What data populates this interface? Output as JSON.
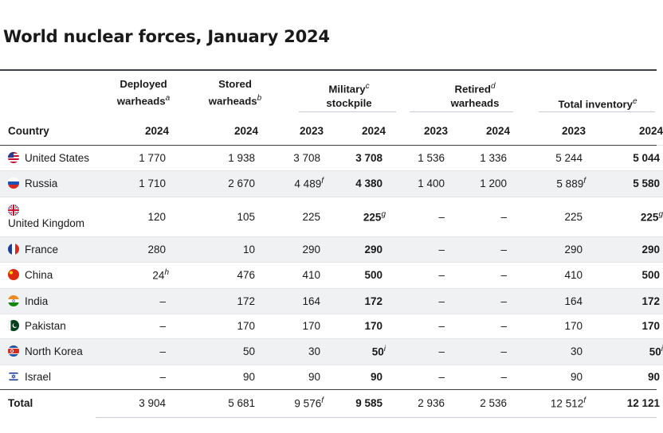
{
  "title": "World nuclear forces, January 2024",
  "headers": {
    "deployed": [
      "Deployed",
      "warheads"
    ],
    "deployed_sup": "a",
    "stored": [
      "Stored",
      "warheads"
    ],
    "stored_sup": "b",
    "military": [
      "Military",
      "stockpile"
    ],
    "military_sup": "c",
    "retired": [
      "Retired",
      "warheads"
    ],
    "retired_sup": "d",
    "total": "Total inventory",
    "total_sup": "e",
    "country": "Country",
    "years": [
      "2024",
      "2024",
      "2023",
      "2024",
      "2023",
      "2024",
      "2023",
      "2024"
    ]
  },
  "rows": [
    {
      "country": "United States",
      "flag": "us-flag-icon",
      "cells": [
        "1 770",
        "1 938",
        "3 708",
        "3 708",
        "1 536",
        "1 336",
        "5 244",
        "5 044"
      ],
      "sups": [
        "",
        "",
        "",
        "",
        "",
        "",
        "",
        ""
      ]
    },
    {
      "country": "Russia",
      "flag": "russia-flag-icon",
      "cells": [
        "1 710",
        "2 670",
        "4 489",
        "4 380",
        "1 400",
        "1 200",
        "5 889",
        "5 580"
      ],
      "sups": [
        "",
        "",
        "f",
        "",
        "",
        "",
        "f",
        ""
      ]
    },
    {
      "country": "United Kingdom",
      "flag": "uk-flag-icon",
      "cells": [
        "120",
        "105",
        "225",
        "225",
        "–",
        "–",
        "225",
        "225"
      ],
      "sups": [
        "",
        "",
        "",
        "g",
        "",
        "",
        "",
        "g"
      ]
    },
    {
      "country": "France",
      "flag": "france-flag-icon",
      "cells": [
        "280",
        "10",
        "290",
        "290",
        "–",
        "–",
        "290",
        "290"
      ],
      "sups": [
        "",
        "",
        "",
        "",
        "",
        "",
        "",
        ""
      ]
    },
    {
      "country": "China",
      "flag": "china-flag-icon",
      "cells": [
        "24",
        "476",
        "410",
        "500",
        "–",
        "–",
        "410",
        "500"
      ],
      "sups": [
        "h",
        "",
        "",
        "",
        "",
        "",
        "",
        ""
      ]
    },
    {
      "country": "India",
      "flag": "india-flag-icon",
      "cells": [
        "–",
        "172",
        "164",
        "172",
        "–",
        "–",
        "164",
        "172"
      ],
      "sups": [
        "",
        "",
        "",
        "",
        "",
        "",
        "",
        ""
      ]
    },
    {
      "country": "Pakistan",
      "flag": "pakistan-flag-icon",
      "cells": [
        "–",
        "170",
        "170",
        "170",
        "–",
        "–",
        "170",
        "170"
      ],
      "sups": [
        "",
        "",
        "",
        "",
        "",
        "",
        "",
        ""
      ]
    },
    {
      "country": "North Korea",
      "flag": "north-korea-flag-icon",
      "cells": [
        "–",
        "50",
        "30",
        "50",
        "–",
        "–",
        "30",
        "50"
      ],
      "sups": [
        "",
        "",
        "",
        "i",
        "",
        "",
        "",
        "i"
      ]
    },
    {
      "country": "Israel",
      "flag": "israel-flag-icon",
      "cells": [
        "–",
        "90",
        "90",
        "90",
        "–",
        "–",
        "90",
        "90"
      ],
      "sups": [
        "",
        "",
        "",
        "",
        "",
        "",
        "",
        ""
      ]
    }
  ],
  "total": {
    "label": "Total",
    "cells": [
      "3 904",
      "5 681",
      "9 576",
      "9 585",
      "2 936",
      "2 536",
      "12 512",
      "12 121"
    ],
    "sups": [
      "",
      "",
      "f",
      "",
      "",
      "",
      "f",
      ""
    ]
  }
}
